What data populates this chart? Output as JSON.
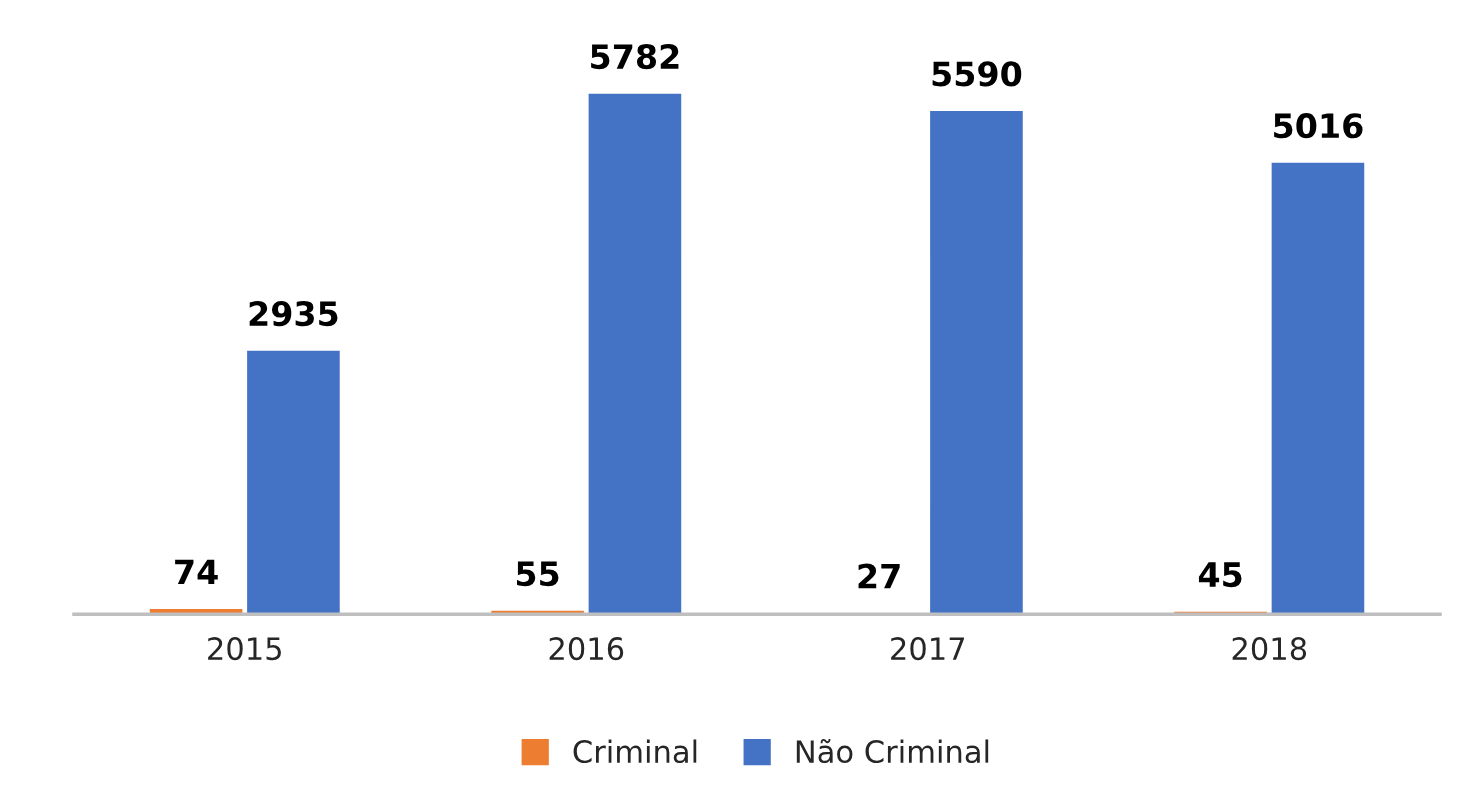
{
  "chart_data": {
    "type": "bar",
    "categories": [
      "2015",
      "2016",
      "2017",
      "2018"
    ],
    "series": [
      {
        "name": "Criminal",
        "color": "#ed7d31",
        "values": [
          74,
          55,
          27,
          45
        ]
      },
      {
        "name": "Não Criminal",
        "color": "#4472c4",
        "values": [
          2935,
          5782,
          5590,
          5016
        ]
      }
    ],
    "data_labels": true,
    "legend": "bottom",
    "grid": false
  }
}
